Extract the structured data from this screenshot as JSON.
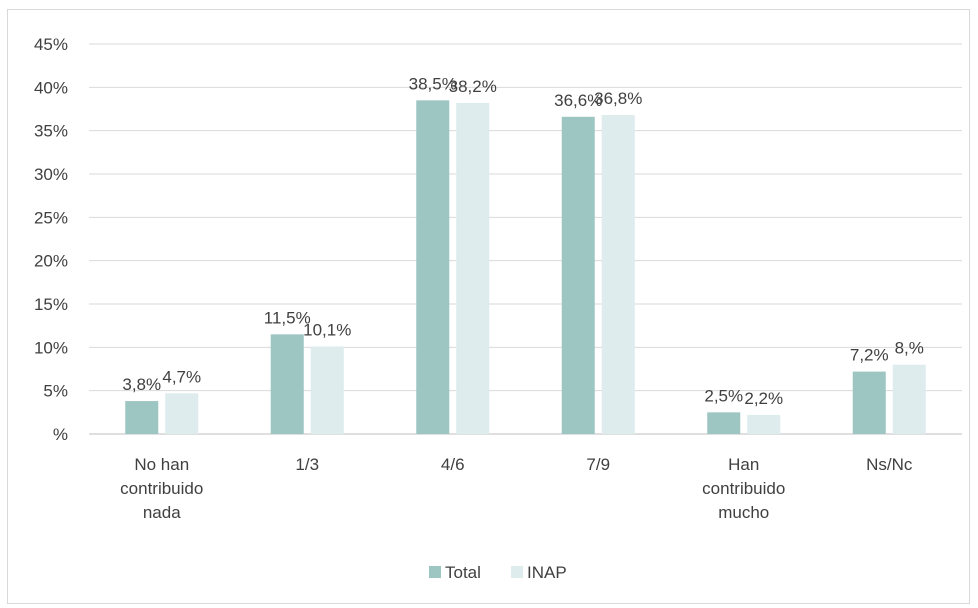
{
  "chart_data": {
    "type": "bar",
    "categories": [
      [
        "No han",
        "contribuido",
        "nada"
      ],
      [
        "1/3"
      ],
      [
        "4/6"
      ],
      [
        "7/9"
      ],
      [
        "Han",
        "contribuido",
        "mucho"
      ],
      [
        "Ns/Nc"
      ]
    ],
    "series": [
      {
        "name": "Total",
        "color": "#9dc6c2",
        "values": [
          3.8,
          11.5,
          38.5,
          36.6,
          2.5,
          7.2
        ],
        "labels": [
          "3,8%",
          "11,5%",
          "38,5%",
          "36,6%",
          "2,5%",
          "7,2%"
        ]
      },
      {
        "name": "INAP",
        "color": "#deeced",
        "values": [
          4.7,
          10.1,
          38.2,
          36.8,
          2.2,
          8.0
        ],
        "labels": [
          "4,7%",
          "10,1%",
          "38,2%",
          "36,8%",
          "2,2%",
          "8,%"
        ]
      }
    ],
    "ylim": [
      0,
      45
    ],
    "yticks": [
      "%",
      "5%",
      "10%",
      "15%",
      "20%",
      "25%",
      "30%",
      "35%",
      "40%",
      "45%"
    ],
    "grid": true,
    "legend_position": "bottom"
  }
}
